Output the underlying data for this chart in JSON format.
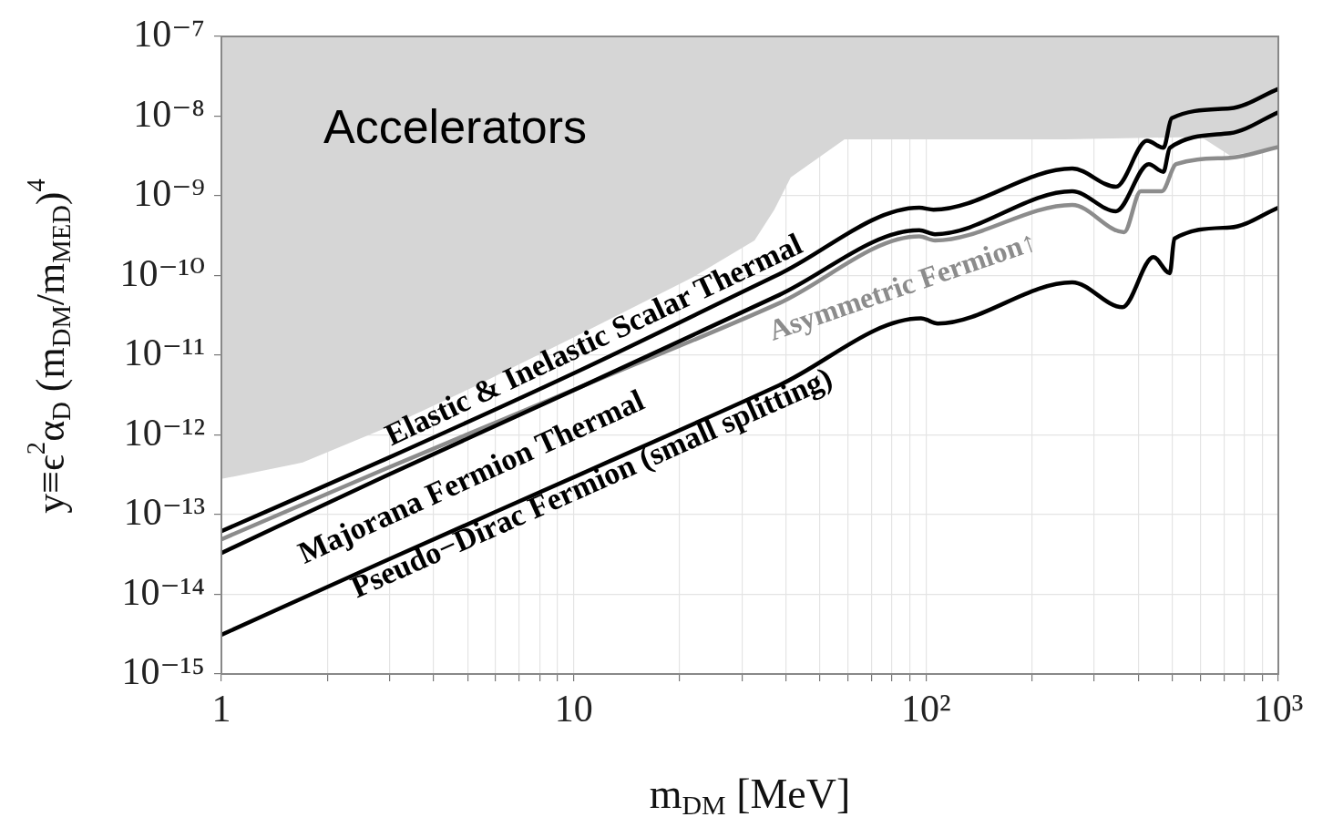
{
  "chart_data": {
    "type": "line",
    "xlabel": "m$_{DM}$ [MeV]",
    "ylabel": "y≡ϵ$^{2}$α$_{D}$ (m$_{DM}$/m$_{MED}$)$^{4}$",
    "annotations": [
      "Accelerators"
    ],
    "log": "xy",
    "grid": true,
    "xlim": [
      1,
      1000
    ],
    "ylim": [
      1e-15,
      1e-07
    ],
    "xticks": [
      1,
      {
        "value": 2,
        "label": null
      },
      {
        "value": 3,
        "label": null
      },
      {
        "value": 4,
        "label": null
      },
      {
        "value": 5,
        "label": null
      },
      {
        "value": 6,
        "label": null
      },
      {
        "value": 7,
        "label": null
      },
      {
        "value": 8,
        "label": null
      },
      {
        "value": 9,
        "label": null
      },
      10,
      {
        "value": 20,
        "label": null
      },
      {
        "value": 30,
        "label": null
      },
      {
        "value": 40,
        "label": null
      },
      {
        "value": 50,
        "label": null
      },
      {
        "value": 60,
        "label": null
      },
      {
        "value": 70,
        "label": null
      },
      {
        "value": 80,
        "label": null
      },
      {
        "value": 90,
        "label": null
      },
      {
        "value": 100,
        "label": "10²"
      },
      {
        "value": 200,
        "label": null
      },
      {
        "value": 300,
        "label": null
      },
      {
        "value": 400,
        "label": null
      },
      {
        "value": 500,
        "label": null
      },
      {
        "value": 600,
        "label": null
      },
      {
        "value": 700,
        "label": null
      },
      {
        "value": 800,
        "label": null
      },
      {
        "value": 900,
        "label": null
      },
      {
        "value": 1000,
        "label": "10³"
      }
    ],
    "yticks": [
      {
        "value": 1e-15,
        "label": "10⁻¹⁵"
      },
      {
        "value": 1e-14,
        "label": "10⁻¹⁴"
      },
      {
        "value": 1e-13,
        "label": "10⁻¹³"
      },
      {
        "value": 1e-12,
        "label": "10⁻¹²"
      },
      {
        "value": 1e-11,
        "label": "10⁻¹¹"
      },
      {
        "value": 1e-10,
        "label": "10⁻¹⁰"
      },
      {
        "value": 1e-09,
        "label": "10⁻⁹"
      },
      {
        "value": 1e-08,
        "label": "10⁻⁸"
      },
      {
        "value": 1e-07,
        "label": "10⁻⁷"
      }
    ],
    "series": [
      {
        "type": "area",
        "color": "#d6d6d6",
        "x": [
          1,
          1,
          1.7,
          2.9,
          5.2,
          10.6,
          21.7,
          32.6,
          37.1,
          41.3,
          58.7,
          247,
          603,
          729,
          1000,
          1000
        ],
        "values": [
          1e-07,
          2.8e-13,
          4.5e-13,
          1.2e-12,
          4e-12,
          1.9e-11,
          9.4e-11,
          2.75e-10,
          6.7e-10,
          1.7e-09,
          5.1e-09,
          5.1e-09,
          5.5e-09,
          3.2e-09,
          4e-09,
          1e-07
        ]
      },
      {
        "name": "Elastic & Inelastic Scalar Thermal",
        "color": "#000000",
        "x": [
          1,
          2.9,
          10.6,
          38.3,
          95.7,
          105,
          260,
          346,
          424,
          472,
          498,
          729,
          1000
        ],
        "values": [
          6.2e-14,
          4.9e-13,
          6.7e-12,
          1.04e-10,
          7.1e-10,
          6.7e-10,
          2.2e-09,
          1.3e-09,
          4.9e-09,
          4e-09,
          9.4e-09,
          1.25e-08,
          2.2e-08
        ]
      },
      {
        "name": "Majorana Fermion Thermal",
        "color": "#000000",
        "x": [
          1,
          2.9,
          10.6,
          38.3,
          95.7,
          106,
          260,
          346,
          429,
          472,
          492,
          729,
          1000
        ],
        "values": [
          3.3e-14,
          3e-13,
          4.1e-12,
          5.7e-11,
          3.7e-10,
          3.3e-10,
          1.14e-09,
          6.4e-10,
          2.5e-09,
          2e-09,
          4e-09,
          6.1e-09,
          1.12e-08
        ]
      },
      {
        "name": "Asymmetric Fermion↑",
        "color": "#8c8c8c",
        "x": [
          1,
          2.9,
          10.6,
          38.3,
          95.7,
          106,
          260,
          365,
          407,
          467,
          513,
          729,
          1000
        ],
        "values": [
          4.9e-14,
          3.7e-13,
          4.1e-12,
          4.5e-11,
          3.1e-10,
          2.75e-10,
          7.7e-10,
          3.5e-10,
          1.14e-09,
          1.14e-09,
          2.5e-09,
          3e-09,
          4.1e-09
        ]
      },
      {
        "name": "Pseudo−Dirac Fermion (small splitting)",
        "color": "#000000",
        "x": [
          1,
          2.9,
          10.6,
          38.3,
          96.8,
          108,
          260,
          361,
          442,
          492,
          507,
          729,
          1000
        ],
        "values": [
          3.1e-15,
          2.6e-14,
          3.3e-13,
          4.2e-12,
          2.9e-11,
          2.5e-11,
          8.2e-11,
          4e-11,
          1.7e-10,
          1.07e-10,
          2.9e-10,
          4e-10,
          7.1e-10
        ]
      }
    ]
  }
}
